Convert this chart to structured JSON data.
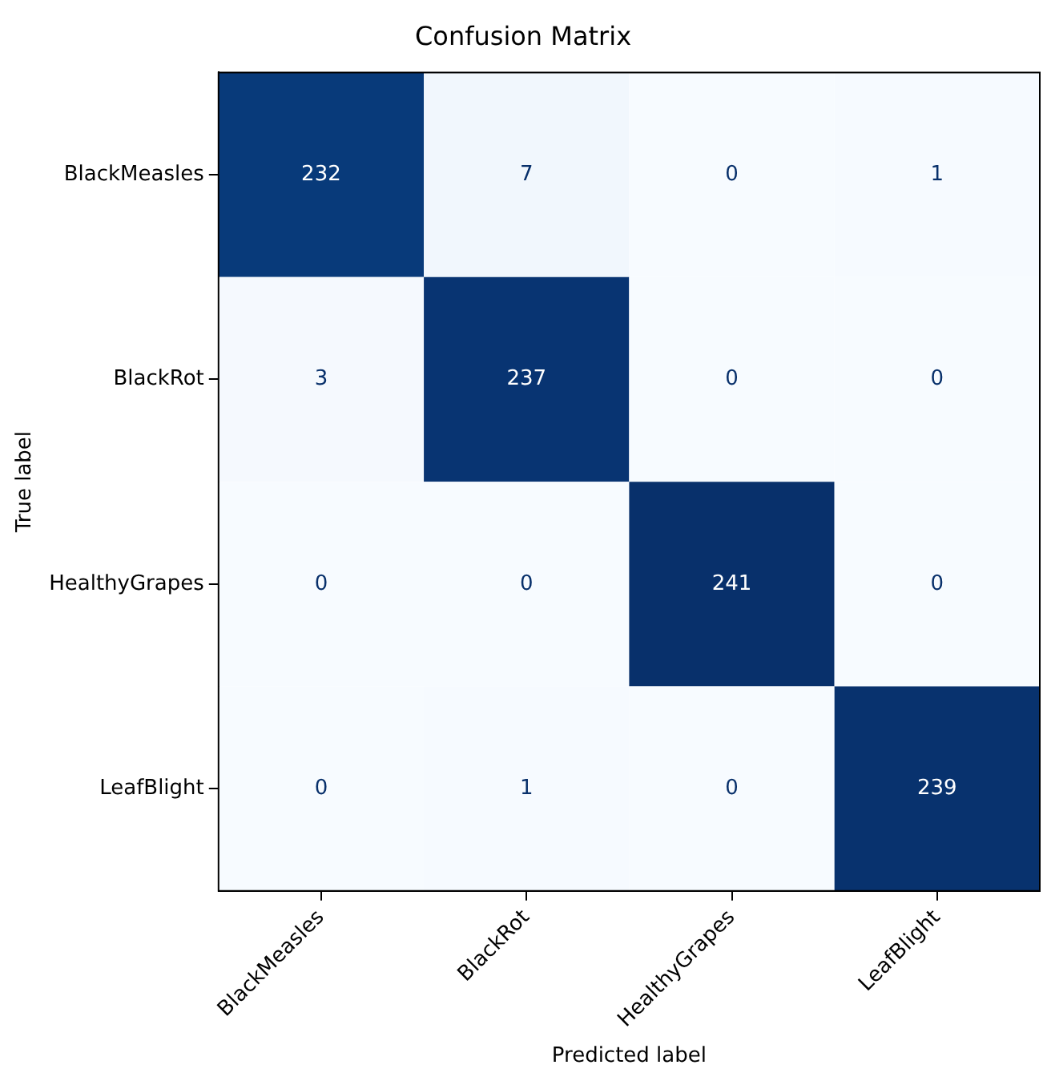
{
  "chart_data": {
    "type": "heatmap",
    "title": "Confusion Matrix",
    "xlabel": "Predicted label",
    "ylabel": "True label",
    "data_labels": true,
    "categories": [
      "BlackMeasles",
      "BlackRot",
      "HealthyGrapes",
      "LeafBlight"
    ],
    "y_categories": [
      "BlackMeasles",
      "BlackRot",
      "HealthyGrapes",
      "LeafBlight"
    ],
    "cells": [
      [
        232,
        7,
        0,
        1
      ],
      [
        3,
        237,
        0,
        0
      ],
      [
        0,
        0,
        241,
        0
      ],
      [
        0,
        1,
        0,
        239
      ]
    ]
  }
}
